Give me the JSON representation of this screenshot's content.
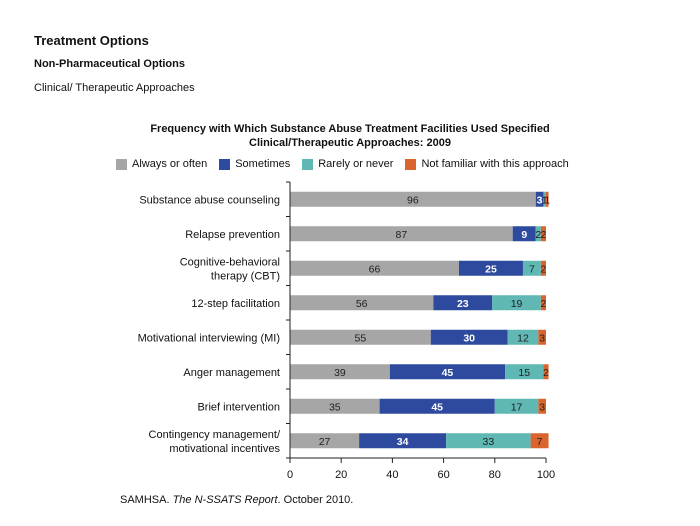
{
  "page": {
    "heading": "Treatment Options",
    "subheading": "Non-Pharmaceutical Options",
    "section": "Clinical/ Therapeutic Approaches",
    "source_prefix": "SAMHSA. ",
    "source_italic": "The N-SSATS Report",
    "source_suffix": ". October 2010."
  },
  "chart_data": {
    "type": "bar",
    "orientation": "horizontal",
    "stacked": true,
    "title_line1": "Frequency with Which Substance Abuse Treatment Facilities Used Specified",
    "title_line2": "Clinical/Therapeutic Approaches: 2009",
    "categories": [
      [
        "Substance abuse counseling"
      ],
      [
        "Relapse prevention"
      ],
      [
        "Cognitive-behavioral",
        "therapy (CBT)"
      ],
      [
        "12-step facilitation"
      ],
      [
        "Motivational interviewing (MI)"
      ],
      [
        "Anger management"
      ],
      [
        "Brief intervention"
      ],
      [
        "Contingency management/",
        "motivational incentives"
      ]
    ],
    "series": [
      {
        "name": "Always or often",
        "color": "#a6a6a6",
        "label_color": "#222222",
        "values": [
          96,
          87,
          66,
          56,
          55,
          39,
          35,
          27
        ]
      },
      {
        "name": "Sometimes",
        "color": "#2e4a9e",
        "label_color": "#ffffff",
        "values": [
          3,
          9,
          25,
          23,
          30,
          45,
          45,
          34
        ]
      },
      {
        "name": "Rarely or never",
        "color": "#5fb8b4",
        "label_color": "#222222",
        "values": [
          1,
          2,
          7,
          19,
          12,
          15,
          17,
          33
        ]
      },
      {
        "name": "Not familiar with this approach",
        "color": "#d9642e",
        "label_color": "#222222",
        "values": [
          1,
          2,
          2,
          2,
          3,
          2,
          3,
          7
        ]
      }
    ],
    "xlim": [
      0,
      100
    ],
    "xticks": [
      0,
      20,
      40,
      60,
      80,
      100
    ],
    "legend_position": "top",
    "grid": false
  }
}
